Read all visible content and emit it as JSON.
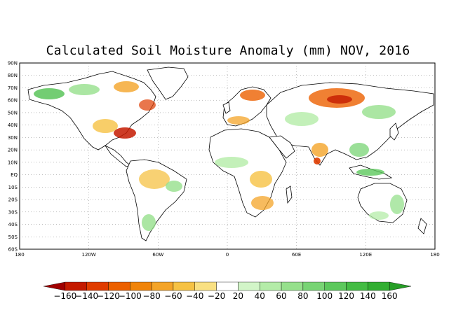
{
  "title": "Calculated Soil Moisture Anomaly (mm) NOV, 2016",
  "lat_labels": [
    "90N",
    "80N",
    "70N",
    "60N",
    "50N",
    "40N",
    "30N",
    "20N",
    "10N",
    "EQ",
    "10S",
    "20S",
    "30S",
    "40S",
    "50S",
    "60S"
  ],
  "lon_labels": [
    "180",
    "120W",
    "60W",
    "0",
    "60E",
    "120E",
    "180"
  ],
  "colorbar": {
    "labels": [
      "−160",
      "−140",
      "−120",
      "−100",
      "−80",
      "−60",
      "−40",
      "−20",
      "20",
      "40",
      "60",
      "80",
      "100",
      "120",
      "140",
      "160"
    ],
    "colors": [
      "#a00000",
      "#c41a00",
      "#e03c00",
      "#ec6000",
      "#f0840a",
      "#f4a428",
      "#f6c244",
      "#f9e082",
      "#ffffff",
      "#d2f5c8",
      "#b4eca8",
      "#96e08c",
      "#78d474",
      "#5cc85c",
      "#44bc44",
      "#32ae32",
      "#269e26"
    ]
  },
  "palette": {
    "land": "#ffffff",
    "coast": "#000000",
    "grid": "#808080"
  }
}
